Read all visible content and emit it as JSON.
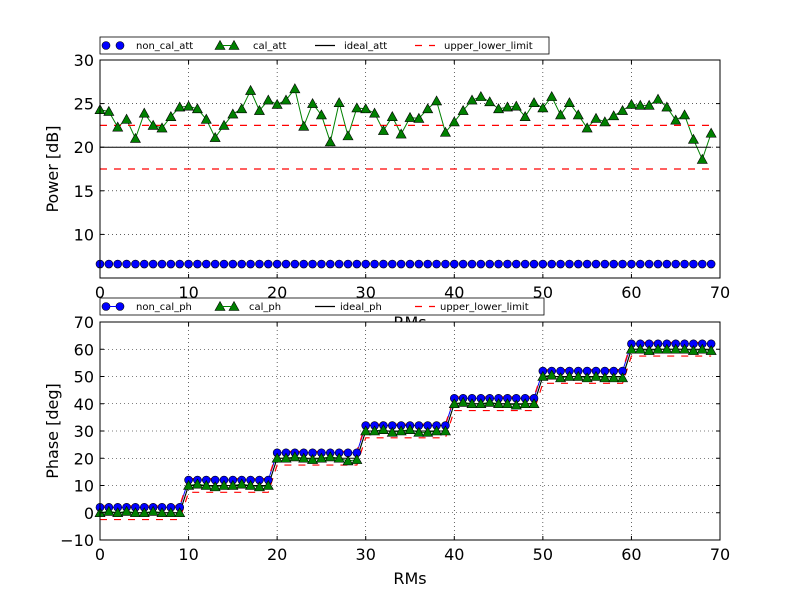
{
  "chart_data": [
    {
      "type": "line",
      "xlabel": "RMs",
      "ylabel": "Power [dB]",
      "xlim": [
        0,
        70
      ],
      "ylim": [
        5,
        30
      ],
      "xticks": [
        0,
        10,
        20,
        30,
        40,
        50,
        60,
        70
      ],
      "yticks": [
        10,
        15,
        20,
        25,
        30
      ],
      "grid": true,
      "legend_position": "top-left, above plot",
      "series": [
        {
          "name": "non_cal_att",
          "color": "#0000ff",
          "marker": "circle",
          "x": [
            0,
            1,
            2,
            3,
            4,
            5,
            6,
            7,
            8,
            9,
            10,
            11,
            12,
            13,
            14,
            15,
            16,
            17,
            18,
            19,
            20,
            21,
            22,
            23,
            24,
            25,
            26,
            27,
            28,
            29,
            30,
            31,
            32,
            33,
            34,
            35,
            36,
            37,
            38,
            39,
            40,
            41,
            42,
            43,
            44,
            45,
            46,
            47,
            48,
            49,
            50,
            51,
            52,
            53,
            54,
            55,
            56,
            57,
            58,
            59,
            60,
            61,
            62,
            63,
            64,
            65,
            66,
            67,
            68,
            69
          ],
          "y": [
            6.6,
            6.6,
            6.6,
            6.6,
            6.6,
            6.6,
            6.6,
            6.6,
            6.6,
            6.6,
            6.6,
            6.6,
            6.6,
            6.6,
            6.6,
            6.6,
            6.6,
            6.6,
            6.6,
            6.6,
            6.6,
            6.6,
            6.6,
            6.6,
            6.6,
            6.6,
            6.6,
            6.6,
            6.6,
            6.6,
            6.6,
            6.6,
            6.6,
            6.6,
            6.6,
            6.6,
            6.6,
            6.6,
            6.6,
            6.6,
            6.6,
            6.6,
            6.6,
            6.6,
            6.6,
            6.6,
            6.6,
            6.6,
            6.6,
            6.6,
            6.6,
            6.6,
            6.6,
            6.6,
            6.6,
            6.6,
            6.6,
            6.6,
            6.6,
            6.6,
            6.6,
            6.6,
            6.6,
            6.6,
            6.6,
            6.6,
            6.6,
            6.6,
            6.6,
            6.6
          ]
        },
        {
          "name": "cal_att",
          "color": "#008000",
          "marker": "triangle",
          "line": true,
          "x": [
            0,
            1,
            2,
            3,
            4,
            5,
            6,
            7,
            8,
            9,
            10,
            11,
            12,
            13,
            14,
            15,
            16,
            17,
            18,
            19,
            20,
            21,
            22,
            23,
            24,
            25,
            26,
            27,
            28,
            29,
            30,
            31,
            32,
            33,
            34,
            35,
            36,
            37,
            38,
            39,
            40,
            41,
            42,
            43,
            44,
            45,
            46,
            47,
            48,
            49,
            50,
            51,
            52,
            53,
            54,
            55,
            56,
            57,
            58,
            59,
            60,
            61,
            62,
            63,
            64,
            65,
            66,
            67,
            68,
            69
          ],
          "y": [
            24.3,
            24.1,
            22.3,
            23.2,
            21.0,
            23.9,
            22.5,
            22.2,
            23.5,
            24.6,
            24.7,
            24.4,
            23.2,
            21.1,
            22.5,
            23.8,
            24.4,
            26.5,
            24.2,
            25.4,
            24.9,
            25.4,
            26.7,
            22.4,
            25.0,
            23.7,
            20.6,
            25.1,
            21.3,
            24.5,
            24.4,
            23.9,
            21.9,
            23.5,
            21.5,
            23.4,
            23.3,
            24.4,
            25.3,
            21.7,
            22.9,
            24.2,
            25.4,
            25.8,
            25.2,
            24.4,
            24.6,
            24.7,
            23.5,
            25.1,
            24.5,
            25.8,
            23.7,
            25.1,
            23.7,
            22.2,
            23.3,
            22.9,
            23.6,
            24.2,
            24.9,
            24.8,
            24.8,
            25.5,
            24.6,
            23.1,
            23.7,
            20.9,
            18.6,
            21.6
          ]
        },
        {
          "name": "ideal_att",
          "color": "#000000",
          "style": "solid",
          "x": [
            0,
            69
          ],
          "y": [
            20,
            20
          ]
        },
        {
          "name": "upper_lower_limit",
          "color": "#ff0000",
          "style": "dashed",
          "x": [
            0,
            69
          ],
          "y": [
            22.5,
            22.5
          ]
        },
        {
          "name": "",
          "color": "#ff0000",
          "style": "dashed",
          "x": [
            0,
            69
          ],
          "y": [
            17.5,
            17.5
          ]
        }
      ]
    },
    {
      "type": "line",
      "xlabel": "RMs",
      "ylabel": "Phase [deg]",
      "xlim": [
        0,
        70
      ],
      "ylim": [
        -10,
        70
      ],
      "xticks": [
        0,
        10,
        20,
        30,
        40,
        50,
        60,
        70
      ],
      "yticks": [
        -10,
        0,
        10,
        20,
        30,
        40,
        50,
        60,
        70
      ],
      "grid": true,
      "legend_position": "top-left, above plot",
      "series": [
        {
          "name": "non_cal_ph",
          "color": "#0000ff",
          "marker": "circle",
          "line": true,
          "x": [
            0,
            1,
            2,
            3,
            4,
            5,
            6,
            7,
            8,
            9,
            10,
            11,
            12,
            13,
            14,
            15,
            16,
            17,
            18,
            19,
            20,
            21,
            22,
            23,
            24,
            25,
            26,
            27,
            28,
            29,
            30,
            31,
            32,
            33,
            34,
            35,
            36,
            37,
            38,
            39,
            40,
            41,
            42,
            43,
            44,
            45,
            46,
            47,
            48,
            49,
            50,
            51,
            52,
            53,
            54,
            55,
            56,
            57,
            58,
            59,
            60,
            61,
            62,
            63,
            64,
            65,
            66,
            67,
            68,
            69
          ],
          "y": [
            2,
            2,
            2,
            2,
            2,
            2,
            2,
            2,
            2,
            2,
            12,
            12,
            12,
            12,
            12,
            12,
            12,
            12,
            12,
            12,
            22,
            22,
            22,
            22,
            22,
            22,
            22,
            22,
            22,
            22,
            32,
            32,
            32,
            32,
            32,
            32,
            32,
            32,
            32,
            32,
            42,
            42,
            42,
            42,
            42,
            42,
            42,
            42,
            42,
            42,
            52,
            52,
            52,
            52,
            52,
            52,
            52,
            52,
            52,
            52,
            62,
            62,
            62,
            62,
            62,
            62,
            62,
            62,
            62,
            62
          ]
        },
        {
          "name": "cal_ph",
          "color": "#008000",
          "marker": "triangle",
          "line": true,
          "x": [
            0,
            1,
            2,
            3,
            4,
            5,
            6,
            7,
            8,
            9,
            10,
            11,
            12,
            13,
            14,
            15,
            16,
            17,
            18,
            19,
            20,
            21,
            22,
            23,
            24,
            25,
            26,
            27,
            28,
            29,
            30,
            31,
            32,
            33,
            34,
            35,
            36,
            37,
            38,
            39,
            40,
            41,
            42,
            43,
            44,
            45,
            46,
            47,
            48,
            49,
            50,
            51,
            52,
            53,
            54,
            55,
            56,
            57,
            58,
            59,
            60,
            61,
            62,
            63,
            64,
            65,
            66,
            67,
            68,
            69
          ],
          "y": [
            0,
            0.5,
            0,
            0.5,
            0,
            0,
            0.5,
            0,
            0,
            0,
            10,
            10.5,
            10,
            9.5,
            10,
            10,
            10.5,
            10,
            9.5,
            10,
            20,
            20,
            20.5,
            20,
            19.5,
            20,
            20.5,
            20,
            19,
            19.5,
            30,
            30,
            30.5,
            29.5,
            30,
            30.5,
            29.5,
            29.5,
            30,
            30,
            40,
            40.5,
            40,
            40,
            40.5,
            40,
            40,
            39.5,
            40,
            40,
            50,
            50.5,
            49.5,
            50,
            50,
            49.5,
            50,
            49.5,
            49.5,
            49.5,
            60,
            60,
            59.5,
            60,
            60,
            60,
            60,
            59.5,
            60,
            59.5
          ]
        },
        {
          "name": "ideal_ph",
          "color": "#000000",
          "style": "solid",
          "x": [
            0,
            1,
            2,
            3,
            4,
            5,
            6,
            7,
            8,
            9,
            10,
            11,
            12,
            13,
            14,
            15,
            16,
            17,
            18,
            19,
            20,
            21,
            22,
            23,
            24,
            25,
            26,
            27,
            28,
            29,
            30,
            31,
            32,
            33,
            34,
            35,
            36,
            37,
            38,
            39,
            40,
            41,
            42,
            43,
            44,
            45,
            46,
            47,
            48,
            49,
            50,
            51,
            52,
            53,
            54,
            55,
            56,
            57,
            58,
            59,
            60,
            61,
            62,
            63,
            64,
            65,
            66,
            67,
            68,
            69
          ],
          "y": [
            0,
            0,
            0,
            0,
            0,
            0,
            0,
            0,
            0,
            0,
            10,
            10,
            10,
            10,
            10,
            10,
            10,
            10,
            10,
            10,
            20,
            20,
            20,
            20,
            20,
            20,
            20,
            20,
            20,
            20,
            30,
            30,
            30,
            30,
            30,
            30,
            30,
            30,
            30,
            30,
            40,
            40,
            40,
            40,
            40,
            40,
            40,
            40,
            40,
            40,
            50,
            50,
            50,
            50,
            50,
            50,
            50,
            50,
            50,
            50,
            60,
            60,
            60,
            60,
            60,
            60,
            60,
            60,
            60,
            60
          ]
        },
        {
          "name": "upper_lower_limit",
          "color": "#ff0000",
          "style": "dashed",
          "x": [
            0,
            1,
            2,
            3,
            4,
            5,
            6,
            7,
            8,
            9,
            10,
            11,
            12,
            13,
            14,
            15,
            16,
            17,
            18,
            19,
            20,
            21,
            22,
            23,
            24,
            25,
            26,
            27,
            28,
            29,
            30,
            31,
            32,
            33,
            34,
            35,
            36,
            37,
            38,
            39,
            40,
            41,
            42,
            43,
            44,
            45,
            46,
            47,
            48,
            49,
            50,
            51,
            52,
            53,
            54,
            55,
            56,
            57,
            58,
            59,
            60,
            61,
            62,
            63,
            64,
            65,
            66,
            67,
            68,
            69
          ],
          "y": [
            2.5,
            2.5,
            2.5,
            2.5,
            2.5,
            2.5,
            2.5,
            2.5,
            2.5,
            2.5,
            12.5,
            12.5,
            12.5,
            12.5,
            12.5,
            12.5,
            12.5,
            12.5,
            12.5,
            12.5,
            22.5,
            22.5,
            22.5,
            22.5,
            22.5,
            22.5,
            22.5,
            22.5,
            22.5,
            22.5,
            32.5,
            32.5,
            32.5,
            32.5,
            32.5,
            32.5,
            32.5,
            32.5,
            32.5,
            32.5,
            42.5,
            42.5,
            42.5,
            42.5,
            42.5,
            42.5,
            42.5,
            42.5,
            42.5,
            42.5,
            52.5,
            52.5,
            52.5,
            52.5,
            52.5,
            52.5,
            52.5,
            52.5,
            52.5,
            52.5,
            62.5,
            62.5,
            62.5,
            62.5,
            62.5,
            62.5,
            62.5,
            62.5,
            62.5,
            62.5
          ]
        },
        {
          "name": "",
          "color": "#ff0000",
          "style": "dashed",
          "x": [
            0,
            1,
            2,
            3,
            4,
            5,
            6,
            7,
            8,
            9,
            10,
            11,
            12,
            13,
            14,
            15,
            16,
            17,
            18,
            19,
            20,
            21,
            22,
            23,
            24,
            25,
            26,
            27,
            28,
            29,
            30,
            31,
            32,
            33,
            34,
            35,
            36,
            37,
            38,
            39,
            40,
            41,
            42,
            43,
            44,
            45,
            46,
            47,
            48,
            49,
            50,
            51,
            52,
            53,
            54,
            55,
            56,
            57,
            58,
            59,
            60,
            61,
            62,
            63,
            64,
            65,
            66,
            67,
            68,
            69
          ],
          "y": [
            -2.5,
            -2.5,
            -2.5,
            -2.5,
            -2.5,
            -2.5,
            -2.5,
            -2.5,
            -2.5,
            -2.5,
            7.5,
            7.5,
            7.5,
            7.5,
            7.5,
            7.5,
            7.5,
            7.5,
            7.5,
            7.5,
            17.5,
            17.5,
            17.5,
            17.5,
            17.5,
            17.5,
            17.5,
            17.5,
            17.5,
            17.5,
            27.5,
            27.5,
            27.5,
            27.5,
            27.5,
            27.5,
            27.5,
            27.5,
            27.5,
            27.5,
            37.5,
            37.5,
            37.5,
            37.5,
            37.5,
            37.5,
            37.5,
            37.5,
            37.5,
            37.5,
            47.5,
            47.5,
            47.5,
            47.5,
            47.5,
            47.5,
            47.5,
            47.5,
            47.5,
            47.5,
            57.5,
            57.5,
            57.5,
            57.5,
            57.5,
            57.5,
            57.5,
            57.5,
            57.5,
            57.5
          ]
        }
      ]
    }
  ]
}
